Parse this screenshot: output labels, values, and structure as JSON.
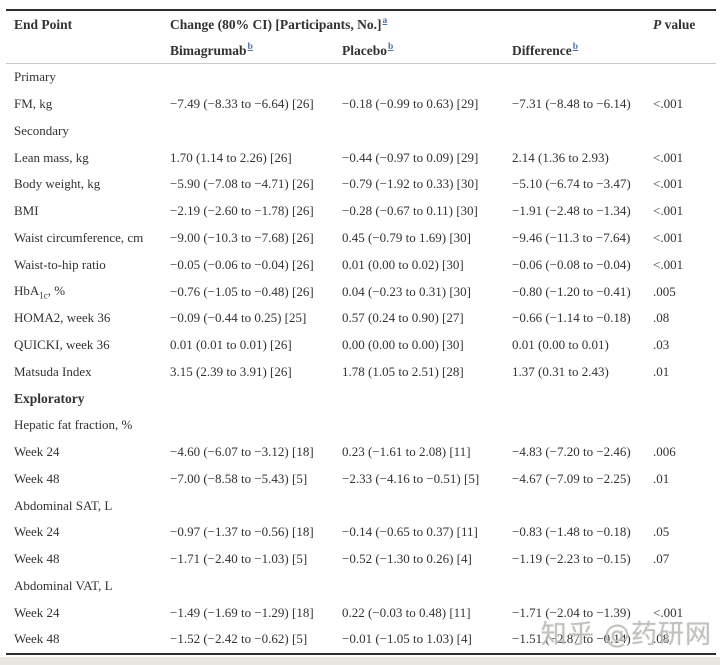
{
  "table": {
    "header": {
      "endpoint": "End Point",
      "span_label": "Change (80% CI) [Participants, No.]",
      "span_footnote": "a",
      "p_italic": "P",
      "p_rest": " value",
      "subcols": [
        {
          "label": "Bimagrumab",
          "footnote": "b"
        },
        {
          "label": "Placebo",
          "footnote": "b"
        },
        {
          "label": "Difference",
          "footnote": "b"
        }
      ]
    },
    "rows": [
      {
        "type": "section",
        "label": "Primary",
        "bold": false
      },
      {
        "type": "data",
        "label": "FM, kg",
        "bimagrumab": "−7.49 (−8.33 to −6.64) [26]",
        "placebo": "−0.18 (−0.99 to 0.63) [29]",
        "difference": "−7.31 (−8.48 to −6.14)",
        "p": "<.001"
      },
      {
        "type": "section",
        "label": "Secondary",
        "bold": false
      },
      {
        "type": "data",
        "label": "Lean mass, kg",
        "bimagrumab": "1.70 (1.14 to 2.26) [26]",
        "placebo": "−0.44 (−0.97 to 0.09) [29]",
        "difference": "2.14 (1.36 to 2.93)",
        "p": "<.001"
      },
      {
        "type": "data",
        "label": "Body weight, kg",
        "bimagrumab": "−5.90 (−7.08 to −4.71) [26]",
        "placebo": "−0.79 (−1.92 to 0.33) [30]",
        "difference": "−5.10 (−6.74 to −3.47)",
        "p": "<.001"
      },
      {
        "type": "data",
        "label": "BMI",
        "bimagrumab": "−2.19 (−2.60 to −1.78) [26]",
        "placebo": "−0.28 (−0.67 to 0.11) [30]",
        "difference": "−1.91 (−2.48 to −1.34)",
        "p": "<.001"
      },
      {
        "type": "data",
        "label": "Waist circumference, cm",
        "bimagrumab": "−9.00 (−10.3 to −7.68) [26]",
        "placebo": "0.45 (−0.79 to 1.69) [30]",
        "difference": "−9.46 (−11.3 to −7.64)",
        "p": "<.001"
      },
      {
        "type": "data",
        "label": "Waist-to-hip ratio",
        "bimagrumab": "−0.05 (−0.06 to −0.04) [26]",
        "placebo": "0.01 (0.00 to 0.02) [30]",
        "difference": "−0.06 (−0.08 to −0.04)",
        "p": "<.001"
      },
      {
        "type": "data",
        "label": "HbA~1c~, %",
        "bimagrumab": "−0.76 (−1.05 to −0.48) [26]",
        "placebo": "0.04 (−0.23 to 0.31) [30]",
        "difference": "−0.80 (−1.20 to −0.41)",
        "p": ".005"
      },
      {
        "type": "data",
        "label": "HOMA2, week 36",
        "bimagrumab": "−0.09 (−0.44 to 0.25) [25]",
        "placebo": "0.57 (0.24 to 0.90) [27]",
        "difference": "−0.66 (−1.14 to −0.18)",
        "p": ".08"
      },
      {
        "type": "data",
        "label": "QUICKI, week 36",
        "bimagrumab": "0.01 (0.01 to 0.01) [26]",
        "placebo": "0.00 (0.00 to 0.00) [30]",
        "difference": "0.01 (0.00 to 0.01)",
        "p": ".03"
      },
      {
        "type": "data",
        "label": "Matsuda Index",
        "bimagrumab": "3.15 (2.39 to 3.91) [26]",
        "placebo": "1.78 (1.05 to 2.51) [28]",
        "difference": "1.37 (0.31 to 2.43)",
        "p": ".01"
      },
      {
        "type": "section",
        "label": "Exploratory",
        "bold": true
      },
      {
        "type": "subsection",
        "label": "Hepatic fat fraction, %",
        "bold": false
      },
      {
        "type": "data",
        "label": "Week 24",
        "bimagrumab": "−4.60 (−6.07 to −3.12) [18]",
        "placebo": "0.23 (−1.61 to 2.08) [11]",
        "difference": "−4.83 (−7.20 to −2.46)",
        "p": ".006"
      },
      {
        "type": "data",
        "label": "Week 48",
        "bimagrumab": "−7.00 (−8.58 to −5.43) [5]",
        "placebo": "−2.33 (−4.16 to −0.51) [5]",
        "difference": "−4.67 (−7.09 to −2.25)",
        "p": ".01"
      },
      {
        "type": "subsection",
        "label": "Abdominal SAT, L",
        "bold": false
      },
      {
        "type": "data",
        "label": "Week 24",
        "bimagrumab": "−0.97 (−1.37 to −0.56) [18]",
        "placebo": "−0.14 (−0.65 to 0.37) [11]",
        "difference": "−0.83 (−1.48 to −0.18)",
        "p": ".05"
      },
      {
        "type": "data",
        "label": "Week 48",
        "bimagrumab": "−1.71 (−2.40 to −1.03) [5]",
        "placebo": "−0.52 (−1.30 to 0.26) [4]",
        "difference": "−1.19 (−2.23 to −0.15)",
        "p": ".07"
      },
      {
        "type": "subsection",
        "label": "Abdominal VAT, L",
        "bold": false
      },
      {
        "type": "data",
        "label": "Week 24",
        "bimagrumab": "−1.49 (−1.69 to −1.29) [18]",
        "placebo": "0.22 (−0.03 to 0.48) [11]",
        "difference": "−1.71 (−2.04 to −1.39)",
        "p": "<.001"
      },
      {
        "type": "data",
        "label": "Week 48",
        "bimagrumab": "−1.52 (−2.42 to −0.62) [5]",
        "placebo": "−0.01 (−1.05 to 1.03) [4]",
        "difference": "−1.51 (−2.87 to −0.14)",
        "p": ".08"
      }
    ]
  },
  "watermark": {
    "text": "知乎 @药研网"
  },
  "colors": {
    "text": "#323232",
    "footnote_link": "#4a71a8",
    "rule_dark": "#2d2d2d",
    "rule_light": "#c8c8c8",
    "page_strip": "#e9e6e1"
  }
}
